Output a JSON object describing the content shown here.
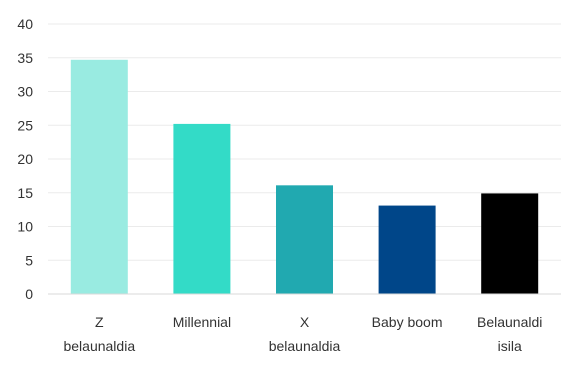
{
  "chart_data": {
    "type": "bar",
    "categories": [
      [
        "Z",
        "belaunaldia"
      ],
      [
        "Millennial"
      ],
      [
        "X",
        "belaunaldia"
      ],
      [
        "Baby boom"
      ],
      [
        "Belaunaldi",
        "isila"
      ]
    ],
    "values": [
      34.7,
      25.2,
      16.1,
      13.1,
      14.9
    ],
    "bar_colors": [
      "#99EBE1",
      "#33DBC7",
      "#21A9B0",
      "#004689",
      "#000000"
    ],
    "ylim": [
      0,
      40
    ],
    "yticks": [
      0,
      5,
      10,
      15,
      20,
      25,
      30,
      35,
      40
    ],
    "grid": true,
    "gridline_color": "#EBEBEB",
    "title": "",
    "xlabel": "",
    "ylabel": ""
  }
}
